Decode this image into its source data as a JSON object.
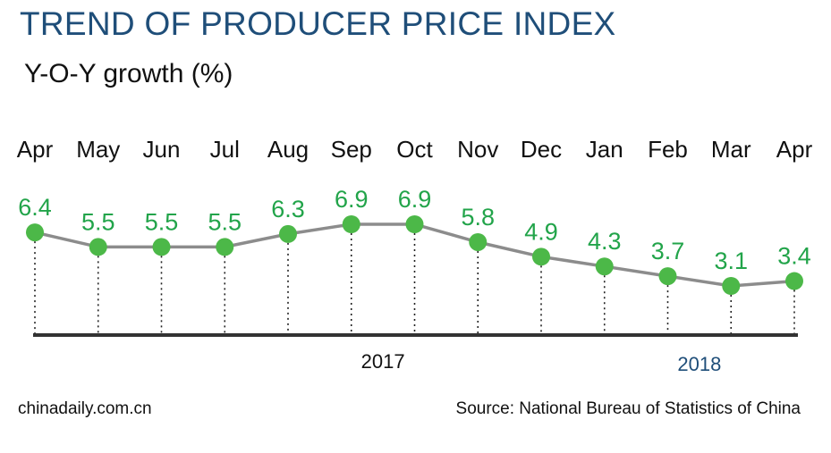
{
  "header": {
    "title": "TREND OF PRODUCER PRICE INDEX",
    "subtitle": "Y-O-Y growth (%)"
  },
  "footer": {
    "site": "chinadaily.com.cn",
    "source": "Source: National Bureau of Statistics of China"
  },
  "colors": {
    "title": "#1f4e79",
    "marker": "#4cb848",
    "value_label": "#22a44a",
    "line": "#8c8c8c",
    "axis": "#333333"
  },
  "chart_data": {
    "type": "line",
    "title": "TREND OF PRODUCER PRICE INDEX",
    "ylabel": "Y-O-Y growth (%)",
    "categories": [
      "Apr",
      "May",
      "Jun",
      "Jul",
      "Aug",
      "Sep",
      "Oct",
      "Nov",
      "Dec",
      "Jan",
      "Feb",
      "Mar",
      "Apr"
    ],
    "values": [
      6.4,
      5.5,
      5.5,
      5.5,
      6.3,
      6.9,
      6.9,
      5.8,
      4.9,
      4.3,
      3.7,
      3.1,
      3.4
    ],
    "value_labels": [
      "6.4",
      "5.5",
      "5.5",
      "5.5",
      "6.3",
      "6.9",
      "6.9",
      "5.8",
      "4.9",
      "4.3",
      "3.7",
      "3.1",
      "3.4"
    ],
    "year_labels": [
      {
        "label": "2017",
        "start_index": 0,
        "end_index": 11
      },
      {
        "label": "2018",
        "start_index": 9,
        "end_index": 12
      }
    ],
    "ylim": [
      3.1,
      6.9
    ],
    "grid": false,
    "legend": "none"
  }
}
